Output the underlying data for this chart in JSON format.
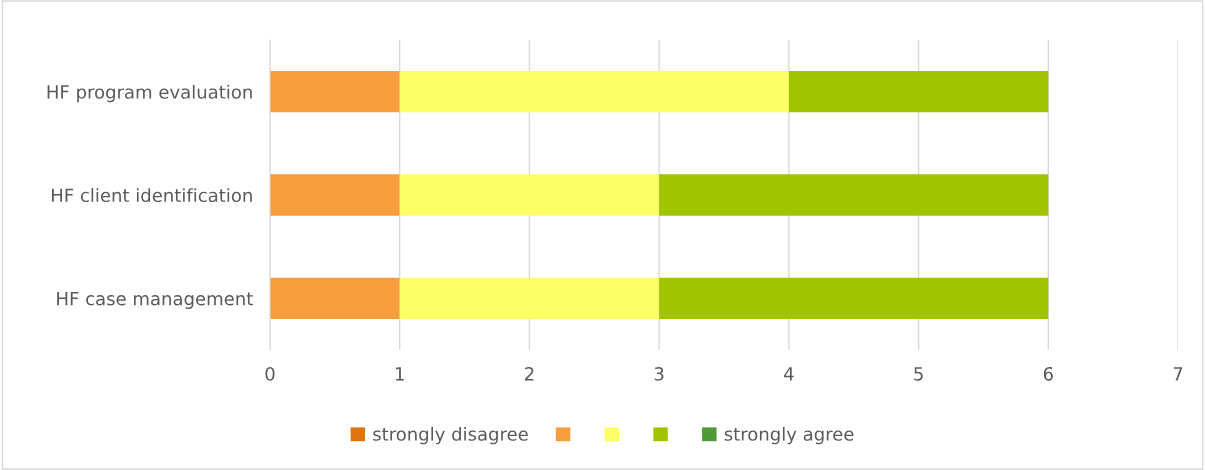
{
  "chart_data": {
    "type": "bar",
    "orientation": "horizontal",
    "stacked": true,
    "categories": [
      "HF program evaluation",
      "HF client identification",
      "HF case management"
    ],
    "series": [
      {
        "name": "strongly disagree",
        "color": "#e07410",
        "values": [
          0,
          0,
          0
        ]
      },
      {
        "color": "#f79d3e",
        "values": [
          1,
          1,
          1
        ]
      },
      {
        "color": "#ffff66",
        "values": [
          3,
          2,
          2
        ]
      },
      {
        "color": "#a0c400",
        "values": [
          2,
          3,
          3
        ]
      },
      {
        "name": "strongly agree",
        "color": "#4e9a36",
        "values": [
          0,
          0,
          0
        ]
      }
    ],
    "xlim": [
      0,
      7
    ],
    "xticks": [
      0,
      1,
      2,
      3,
      4,
      5,
      6,
      7
    ],
    "grid": "x",
    "legend": "bottom"
  }
}
